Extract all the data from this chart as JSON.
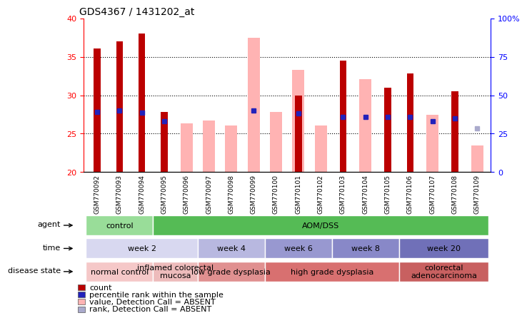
{
  "title": "GDS4367 / 1431202_at",
  "samples": [
    "GSM770092",
    "GSM770093",
    "GSM770094",
    "GSM770095",
    "GSM770096",
    "GSM770097",
    "GSM770098",
    "GSM770099",
    "GSM770100",
    "GSM770101",
    "GSM770102",
    "GSM770103",
    "GSM770104",
    "GSM770105",
    "GSM770106",
    "GSM770107",
    "GSM770108",
    "GSM770109"
  ],
  "red_bars": [
    36.1,
    37.0,
    38.0,
    27.8,
    null,
    null,
    null,
    null,
    null,
    30.0,
    null,
    34.5,
    null,
    31.0,
    32.8,
    null,
    30.5,
    null
  ],
  "pink_bars": [
    null,
    null,
    null,
    null,
    26.3,
    26.7,
    26.1,
    37.5,
    27.8,
    33.3,
    26.1,
    null,
    32.1,
    null,
    null,
    27.5,
    null,
    23.5
  ],
  "blue_squares": [
    27.8,
    28.0,
    27.7,
    26.6,
    null,
    null,
    null,
    28.0,
    null,
    27.6,
    null,
    27.2,
    27.2,
    27.2,
    27.2,
    26.6,
    27.0,
    null
  ],
  "light_blue_squares": [
    null,
    null,
    null,
    null,
    null,
    null,
    null,
    null,
    null,
    null,
    null,
    null,
    null,
    null,
    null,
    null,
    null,
    25.7
  ],
  "ylim_left": [
    20,
    40
  ],
  "ylim_right": [
    0,
    100
  ],
  "yticks_left": [
    20,
    25,
    30,
    35,
    40
  ],
  "yticks_right": [
    0,
    25,
    50,
    75,
    100
  ],
  "red_bar_color": "#bb0000",
  "pink_bar_color": "#ffb3b3",
  "blue_sq_color": "#2222bb",
  "light_blue_sq_color": "#aaaacc",
  "agent_groups": [
    {
      "label": "control",
      "start": 0,
      "end": 3,
      "color": "#99dd99"
    },
    {
      "label": "AOM/DSS",
      "start": 3,
      "end": 18,
      "color": "#55bb55"
    }
  ],
  "time_groups": [
    {
      "label": "week 2",
      "start": 0,
      "end": 5,
      "color": "#d8d8f0"
    },
    {
      "label": "week 4",
      "start": 5,
      "end": 8,
      "color": "#b8b8e0"
    },
    {
      "label": "week 6",
      "start": 8,
      "end": 11,
      "color": "#9898d0"
    },
    {
      "label": "week 8",
      "start": 11,
      "end": 14,
      "color": "#8888c8"
    },
    {
      "label": "week 20",
      "start": 14,
      "end": 18,
      "color": "#7070b8"
    }
  ],
  "disease_groups": [
    {
      "label": "normal control",
      "start": 0,
      "end": 3,
      "color": "#f5c8c8"
    },
    {
      "label": "inflamed colorectal\nmucosa",
      "start": 3,
      "end": 5,
      "color": "#edbbbb"
    },
    {
      "label": "low grade dysplasia",
      "start": 5,
      "end": 8,
      "color": "#e09090"
    },
    {
      "label": "high grade dysplasia",
      "start": 8,
      "end": 14,
      "color": "#d87070"
    },
    {
      "label": "colorectal\nadenocarcinoma",
      "start": 14,
      "end": 18,
      "color": "#c86060"
    }
  ],
  "legend_items": [
    {
      "label": "count",
      "color": "#bb0000"
    },
    {
      "label": "percentile rank within the sample",
      "color": "#2222bb"
    },
    {
      "label": "value, Detection Call = ABSENT",
      "color": "#ffb3b3"
    },
    {
      "label": "rank, Detection Call = ABSENT",
      "color": "#aaaacc"
    }
  ],
  "pink_bar_width": 0.55,
  "red_bar_width": 0.3
}
